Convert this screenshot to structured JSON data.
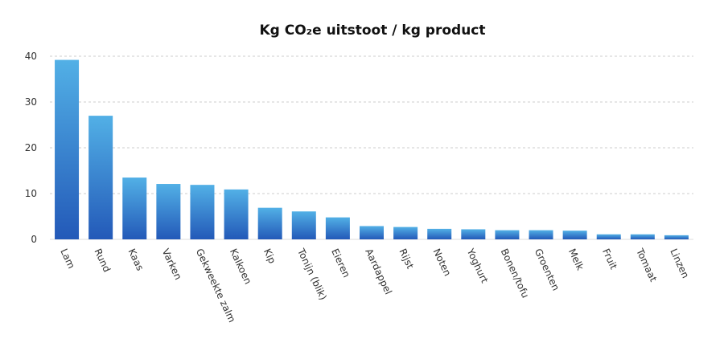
{
  "chart_data": {
    "type": "bar",
    "title": "Kg CO₂e uitstoot / kg product",
    "xlabel": "",
    "ylabel": "",
    "ylim": [
      0,
      40
    ],
    "yticks": [
      0,
      10,
      20,
      30,
      40
    ],
    "grid": true,
    "categories": [
      "Lam",
      "Rund",
      "Kaas",
      "Varken",
      "Gekweekte zalm",
      "Kalkoen",
      "Kip",
      "Tonijn (blik)",
      "Eieren",
      "Aardappel",
      "Rijst",
      "Noten",
      "Yoghurt",
      "Bonen/tofu",
      "Groenten",
      "Melk",
      "Fruit",
      "Tomaat",
      "Linzen"
    ],
    "values": [
      39.2,
      27.0,
      13.5,
      12.1,
      11.9,
      10.9,
      6.9,
      6.1,
      4.8,
      2.9,
      2.7,
      2.3,
      2.2,
      2.0,
      2.0,
      1.9,
      1.1,
      1.1,
      0.9
    ],
    "colors": {
      "bar_top": "#52b0e6",
      "bar_bottom": "#2359b8",
      "grid": "#cccccc"
    }
  }
}
